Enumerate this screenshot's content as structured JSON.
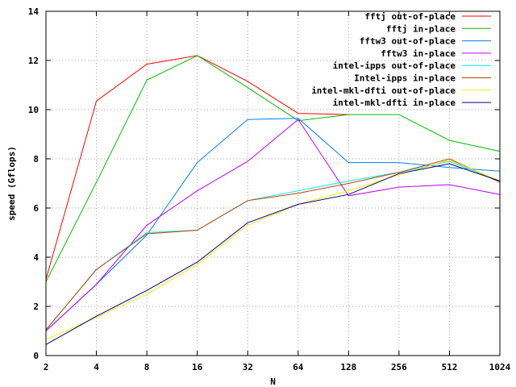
{
  "chart_data": {
    "type": "line",
    "xlabel": "N",
    "ylabel": "speed (Gflops)",
    "x_categories": [
      "2",
      "4",
      "8",
      "16",
      "32",
      "64",
      "128",
      "256",
      "512",
      "1024"
    ],
    "ylim": [
      0,
      14
    ],
    "y_ticks": [
      0,
      2,
      4,
      6,
      8,
      10,
      12,
      14
    ],
    "grid": true,
    "legend_position": "top-right",
    "series": [
      {
        "name": "fftj out-of-place",
        "color": "#ff0000",
        "values": [
          3.1,
          10.35,
          11.85,
          12.2,
          11.15,
          9.85,
          9.8,
          null,
          null,
          null
        ]
      },
      {
        "name": "fftj in-place",
        "color": "#00c000",
        "values": [
          3.0,
          7.05,
          11.2,
          12.2,
          10.9,
          9.55,
          9.8,
          9.8,
          8.75,
          8.3
        ]
      },
      {
        "name": "fftw3 out-of-place",
        "color": "#0080ff",
        "values": [
          1.0,
          2.9,
          4.9,
          7.85,
          9.6,
          9.65,
          7.85,
          7.85,
          7.65,
          7.5
        ]
      },
      {
        "name": "fftw3 in-place",
        "color": "#c000ff",
        "values": [
          1.0,
          2.9,
          5.3,
          6.7,
          7.9,
          9.6,
          6.5,
          6.85,
          6.95,
          6.55
        ]
      },
      {
        "name": "intel-ipps out-of-place",
        "color": "#00eeee",
        "values": [
          1.05,
          3.5,
          5.0,
          5.1,
          6.3,
          6.7,
          7.1,
          7.45,
          7.9,
          7.1
        ]
      },
      {
        "name": "Intel-ipps in-place",
        "color": "#c04000",
        "values": [
          1.05,
          3.5,
          4.95,
          5.1,
          6.3,
          6.6,
          7.0,
          7.45,
          8.0,
          7.05
        ]
      },
      {
        "name": "intel-mkl-dfti out-of-place",
        "color": "#eeee00",
        "values": [
          0.65,
          1.55,
          2.5,
          3.7,
          5.3,
          6.15,
          6.7,
          7.35,
          7.95,
          7.1
        ]
      },
      {
        "name": "intel-mkl-dfti in-place",
        "color": "#000080",
        "values": [
          0.45,
          1.6,
          2.65,
          3.8,
          5.4,
          6.15,
          6.55,
          7.4,
          7.8,
          7.1
        ]
      }
    ]
  }
}
